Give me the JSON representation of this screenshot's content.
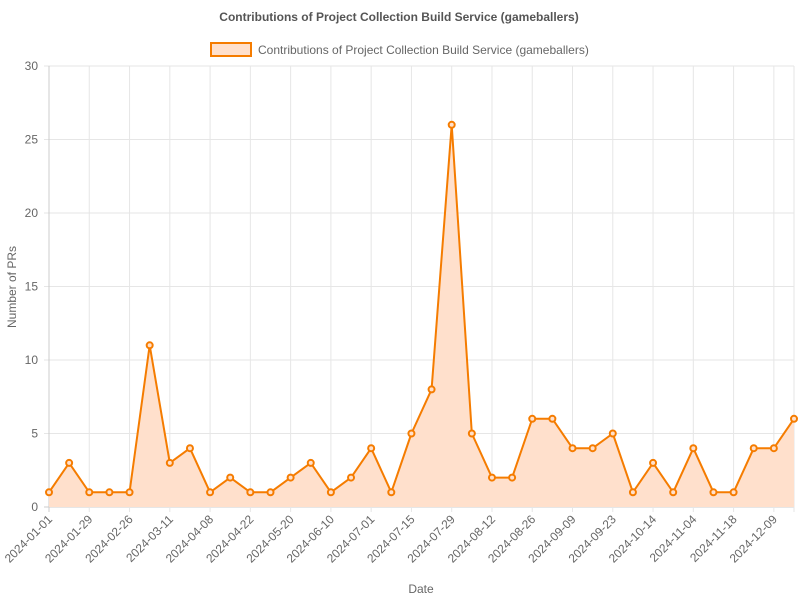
{
  "chart_data": {
    "type": "area",
    "title": "Contributions of Project Collection Build Service (gameballers)",
    "xlabel": "Date",
    "ylabel": "Number of PRs",
    "ylim": [
      0,
      30
    ],
    "yticks": [
      0,
      5,
      10,
      15,
      20,
      25,
      30
    ],
    "grid": true,
    "legend_position": "top",
    "x": [
      "2024-01-01",
      "2024-01-15",
      "2024-01-29",
      "2024-02-12",
      "2024-02-26",
      "2024-03-04",
      "2024-03-11",
      "2024-03-25",
      "2024-04-08",
      "2024-04-15",
      "2024-04-22",
      "2024-05-06",
      "2024-05-20",
      "2024-05-27",
      "2024-06-10",
      "2024-06-17",
      "2024-07-01",
      "2024-07-08",
      "2024-07-15",
      "2024-07-22",
      "2024-07-29",
      "2024-08-05",
      "2024-08-12",
      "2024-08-19",
      "2024-08-26",
      "2024-09-02",
      "2024-09-09",
      "2024-09-16",
      "2024-09-23",
      "2024-09-30",
      "2024-10-14",
      "2024-10-21",
      "2024-11-04",
      "2024-11-11",
      "2024-11-18",
      "2024-11-25",
      "2024-12-09",
      "2024-12-16"
    ],
    "xtick_labels": [
      "2024-01-01",
      "2024-01-29",
      "2024-02-26",
      "2024-03-11",
      "2024-04-08",
      "2024-04-22",
      "2024-05-20",
      "2024-06-10",
      "2024-07-01",
      "2024-07-15",
      "2024-07-29",
      "2024-08-12",
      "2024-08-26",
      "2024-09-09",
      "2024-09-23",
      "2024-10-14",
      "2024-11-04",
      "2024-11-18",
      "2024-12-09"
    ],
    "series": [
      {
        "name": "Contributions of Project Collection Build Service (gameballers)",
        "color": "#f57c00",
        "fill": "#ffe0cc",
        "values": [
          1,
          3,
          1,
          1,
          1,
          11,
          3,
          4,
          1,
          2,
          1,
          1,
          2,
          3,
          1,
          2,
          4,
          1,
          5,
          8,
          26,
          5,
          2,
          2,
          6,
          6,
          4,
          4,
          5,
          1,
          3,
          1,
          4,
          1,
          1,
          4,
          4,
          6
        ]
      }
    ]
  }
}
